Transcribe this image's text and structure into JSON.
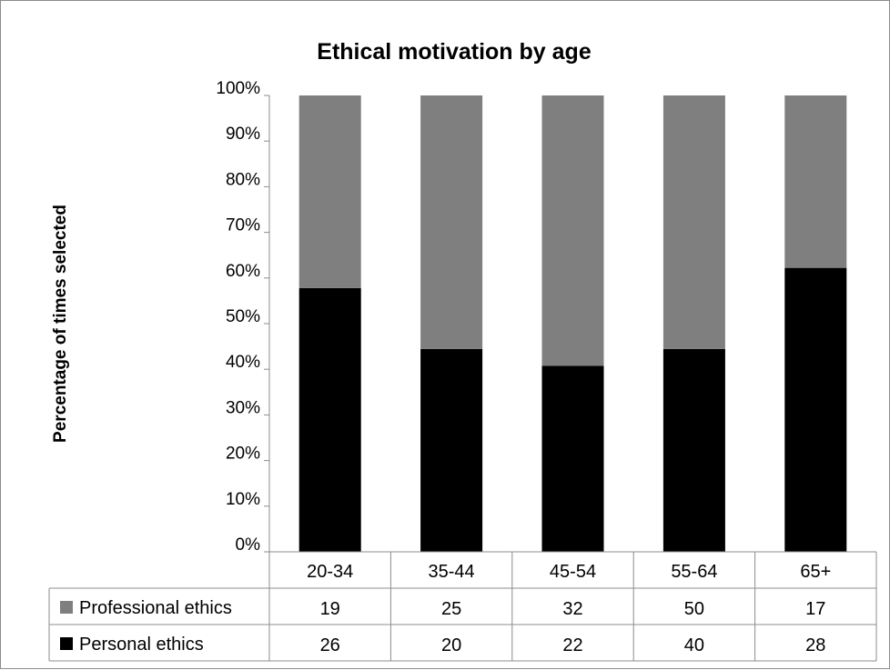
{
  "chart_data": {
    "type": "bar",
    "stacked": true,
    "normalized_percent": true,
    "title": "Ethical motivation by age",
    "ylabel": "Percentage of times selected",
    "xlabel": "",
    "ylim": [
      0,
      100
    ],
    "yticks": [
      "0%",
      "10%",
      "20%",
      "30%",
      "40%",
      "50%",
      "60%",
      "70%",
      "80%",
      "90%",
      "100%"
    ],
    "categories": [
      "20-34",
      "35-44",
      "45-54",
      "55-64",
      "65+"
    ],
    "series": [
      {
        "name": "Personal ethics",
        "values": [
          26,
          20,
          22,
          40,
          28
        ],
        "color": "#000000"
      },
      {
        "name": "Professional ethics",
        "values": [
          19,
          25,
          32,
          50,
          17
        ],
        "color": "#7f7f7f"
      }
    ],
    "data_table": true,
    "table_row_order": [
      "Professional ethics",
      "Personal ethics"
    ],
    "grid": false
  }
}
